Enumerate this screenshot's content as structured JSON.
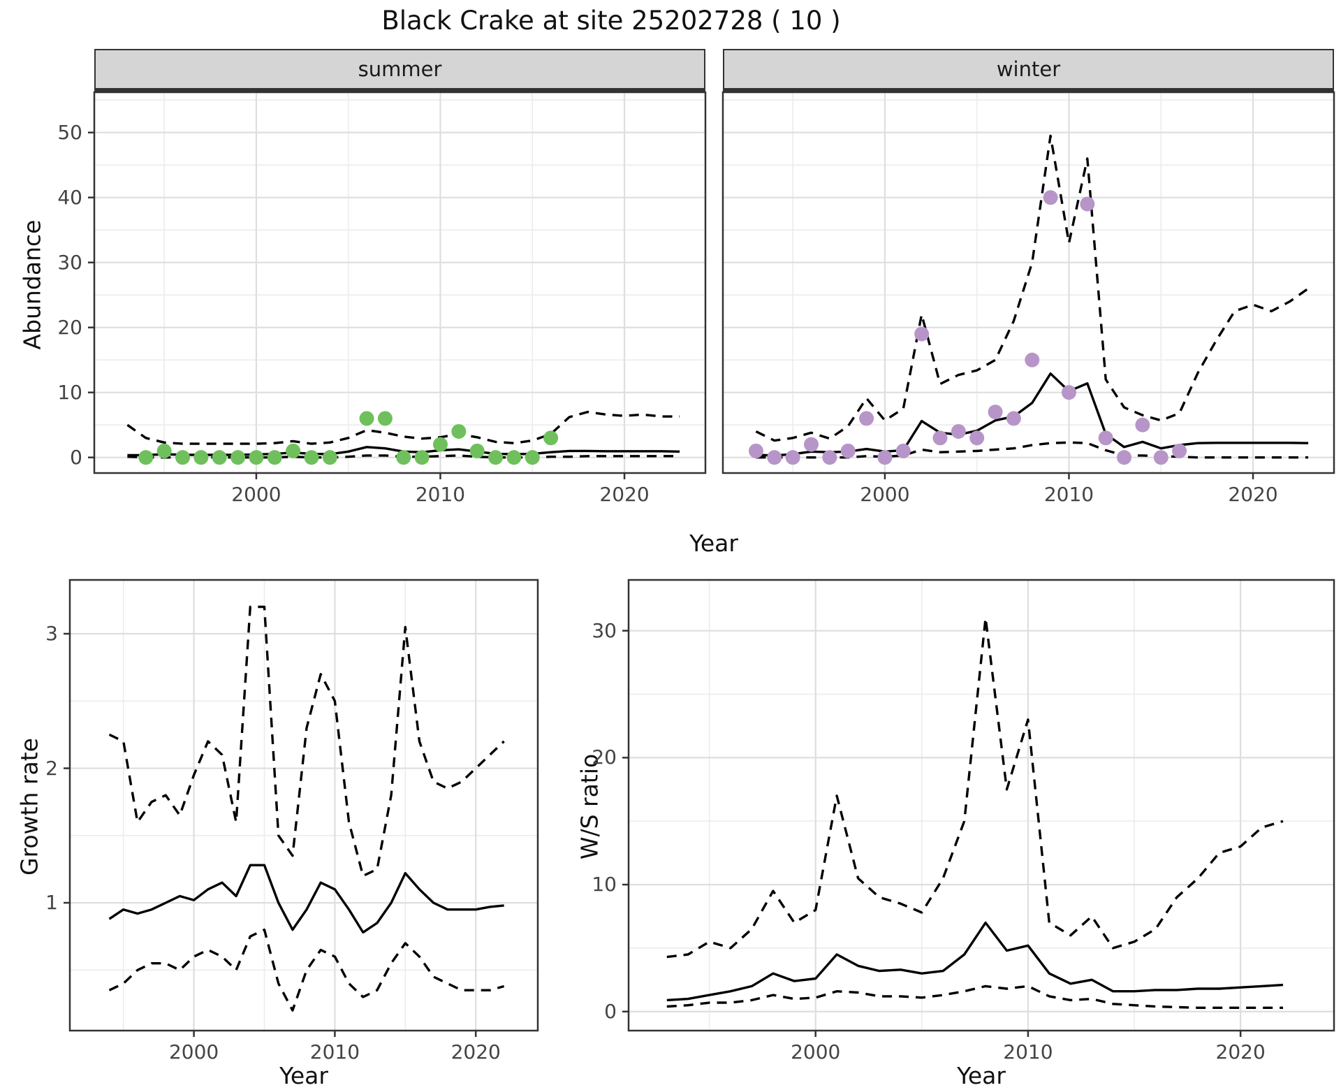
{
  "title": "Black Crake at site 25202728 ( 10 )",
  "axes": {
    "abundance_label": "Abundance",
    "top_x_label": "Year",
    "growth_y_label": "Growth rate",
    "growth_x_label": "Year",
    "ws_y_label": "W/S ratio",
    "ws_x_label": "Year"
  },
  "facets": {
    "summer_label": "summer",
    "winter_label": "winter"
  },
  "colors": {
    "summer_points": "#6FC05C",
    "winter_points": "#B795C8",
    "line": "#000000",
    "strip_bg": "#d5d5d5",
    "grid_major": "#dedede",
    "grid_minor": "#ececec",
    "panel_border": "#333333"
  },
  "chart_data": [
    {
      "id": "summer",
      "type": "line",
      "title": "summer",
      "xlabel": "Year",
      "ylabel": "Abundance",
      "xlim": [
        1991.2,
        2024.4
      ],
      "ylim": [
        -2.4,
        56.2
      ],
      "x_ticks": [
        2000,
        2010,
        2020
      ],
      "y_ticks": [
        0,
        10,
        20,
        30,
        40,
        50
      ],
      "x": [
        1993,
        1994,
        1995,
        1996,
        1997,
        1998,
        1999,
        2000,
        2001,
        2002,
        2003,
        2004,
        2005,
        2006,
        2007,
        2008,
        2009,
        2010,
        2011,
        2012,
        2013,
        2014,
        2015,
        2016,
        2017,
        2018,
        2019,
        2020,
        2021,
        2022,
        2023
      ],
      "series": [
        {
          "name": "mean",
          "style": "solid",
          "values": [
            0.35,
            0.35,
            0.5,
            0.4,
            0.4,
            0.4,
            0.4,
            0.45,
            0.55,
            0.75,
            0.55,
            0.5,
            0.9,
            1.6,
            1.4,
            0.9,
            0.8,
            1.1,
            1.25,
            0.9,
            0.55,
            0.5,
            0.55,
            0.8,
            1.0,
            1.0,
            0.95,
            0.95,
            0.95,
            0.95,
            0.9
          ]
        },
        {
          "name": "upper_ci",
          "style": "dashed",
          "values": [
            5.0,
            3.0,
            2.3,
            2.1,
            2.1,
            2.1,
            2.1,
            2.1,
            2.2,
            2.5,
            2.1,
            2.3,
            3.0,
            4.2,
            3.8,
            3.2,
            2.9,
            3.1,
            3.6,
            3.1,
            2.4,
            2.2,
            2.6,
            3.6,
            6.2,
            7.0,
            6.6,
            6.4,
            6.6,
            6.3,
            6.3
          ]
        },
        {
          "name": "lower_ci",
          "style": "dashed",
          "values": [
            0.1,
            0,
            0,
            0,
            0,
            0,
            0,
            0,
            0,
            0.1,
            0,
            0,
            0.1,
            0.3,
            0.3,
            0.1,
            0.1,
            0.2,
            0.3,
            0.1,
            0,
            0,
            0,
            0.1,
            0.1,
            0.2,
            0.2,
            0.2,
            0.2,
            0.2,
            0.2
          ]
        }
      ],
      "points": {
        "color_key": "summer_points",
        "years": [
          1994,
          1995,
          1996,
          1997,
          1998,
          1999,
          2000,
          2001,
          2002,
          2003,
          2004,
          2006,
          2007,
          2008,
          2009,
          2010,
          2011,
          2012,
          2013,
          2014,
          2015,
          2016
        ],
        "values": [
          0,
          1,
          0,
          0,
          0,
          0,
          0,
          0,
          1,
          0,
          0,
          6,
          6,
          0,
          0,
          2,
          4,
          1,
          0,
          0,
          0,
          3
        ]
      }
    },
    {
      "id": "winter",
      "type": "line",
      "title": "winter",
      "xlabel": "Year",
      "ylabel": "Abundance",
      "xlim": [
        1991.2,
        2024.4
      ],
      "ylim": [
        -2.4,
        56.2
      ],
      "x_ticks": [
        2000,
        2010,
        2020
      ],
      "y_ticks": [
        0,
        10,
        20,
        30,
        40,
        50
      ],
      "x": [
        1993,
        1994,
        1995,
        1996,
        1997,
        1998,
        1999,
        2000,
        2001,
        2002,
        2003,
        2004,
        2005,
        2006,
        2007,
        2008,
        2009,
        2010,
        2011,
        2012,
        2013,
        2014,
        2015,
        2016,
        2017,
        2018,
        2019,
        2020,
        2021,
        2022,
        2023
      ],
      "series": [
        {
          "name": "mean",
          "style": "solid",
          "values": [
            0.4,
            0.3,
            0.5,
            0.9,
            0.8,
            0.9,
            1.3,
            0.9,
            1.1,
            5.6,
            3.8,
            3.5,
            4.1,
            5.7,
            6.3,
            8.4,
            12.9,
            10.2,
            11.4,
            3.6,
            1.6,
            2.4,
            1.4,
            1.9,
            2.2,
            2.25,
            2.25,
            2.25,
            2.25,
            2.25,
            2.2
          ]
        },
        {
          "name": "upper_ci",
          "style": "dashed",
          "values": [
            4.0,
            2.6,
            3.0,
            3.8,
            2.9,
            4.8,
            9.1,
            5.7,
            7.5,
            22,
            11.3,
            12.7,
            13.4,
            15,
            21,
            30,
            49.5,
            33,
            46,
            12,
            7.7,
            6.5,
            5.7,
            6.8,
            13,
            18,
            22.5,
            23.5,
            22.5,
            24,
            26
          ]
        },
        {
          "name": "lower_ci",
          "style": "dashed",
          "values": [
            0,
            0,
            0,
            0,
            0,
            0,
            0.2,
            0.1,
            0.3,
            1.2,
            0.8,
            0.9,
            1.0,
            1.2,
            1.4,
            1.9,
            2.2,
            2.3,
            2.2,
            1.1,
            0.3,
            0.3,
            0.2,
            0.1,
            0,
            0,
            0,
            0,
            0,
            0,
            0
          ]
        }
      ],
      "points": {
        "color_key": "winter_points",
        "years": [
          1993,
          1994,
          1995,
          1996,
          1997,
          1998,
          1999,
          2000,
          2001,
          2002,
          2003,
          2004,
          2005,
          2006,
          2007,
          2008,
          2009,
          2010,
          2011,
          2012,
          2013,
          2014,
          2015,
          2016
        ],
        "values": [
          1,
          0,
          0,
          2,
          0,
          1,
          6,
          0,
          1,
          19,
          3,
          4,
          3,
          7,
          6,
          15,
          40,
          10,
          39,
          3,
          0,
          5,
          0,
          1
        ]
      }
    },
    {
      "id": "growth",
      "type": "line",
      "title": "Growth rate",
      "xlabel": "Year",
      "ylabel": "Growth rate",
      "xlim": [
        1991.2,
        2024.4
      ],
      "ylim": [
        0.05,
        3.4
      ],
      "x_ticks": [
        2000,
        2010,
        2020
      ],
      "y_ticks": [
        1,
        2,
        3
      ],
      "x": [
        1994,
        1995,
        1996,
        1997,
        1998,
        1999,
        2000,
        2001,
        2002,
        2003,
        2004,
        2005,
        2006,
        2007,
        2008,
        2009,
        2010,
        2011,
        2012,
        2013,
        2014,
        2015,
        2016,
        2017,
        2018,
        2019,
        2020,
        2021,
        2022
      ],
      "series": [
        {
          "name": "mean",
          "style": "solid",
          "values": [
            0.88,
            0.95,
            0.92,
            0.95,
            1.0,
            1.05,
            1.02,
            1.1,
            1.15,
            1.05,
            1.28,
            1.28,
            1.0,
            0.8,
            0.95,
            1.15,
            1.1,
            0.95,
            0.78,
            0.85,
            1.0,
            1.22,
            1.1,
            1.0,
            0.95,
            0.95,
            0.95,
            0.97,
            0.98
          ]
        },
        {
          "name": "upper_ci",
          "style": "dashed",
          "values": [
            2.25,
            2.2,
            1.6,
            1.75,
            1.8,
            1.65,
            1.95,
            2.2,
            2.1,
            1.6,
            3.2,
            3.2,
            1.5,
            1.35,
            2.3,
            2.7,
            2.5,
            1.6,
            1.2,
            1.25,
            1.8,
            3.05,
            2.2,
            1.9,
            1.85,
            1.9,
            2.0,
            2.1,
            2.2
          ]
        },
        {
          "name": "lower_ci",
          "style": "dashed",
          "values": [
            0.35,
            0.4,
            0.5,
            0.55,
            0.55,
            0.5,
            0.6,
            0.65,
            0.6,
            0.5,
            0.75,
            0.8,
            0.4,
            0.2,
            0.5,
            0.65,
            0.6,
            0.4,
            0.3,
            0.35,
            0.55,
            0.7,
            0.6,
            0.45,
            0.4,
            0.35,
            0.35,
            0.35,
            0.38
          ]
        }
      ],
      "points": null
    },
    {
      "id": "ws",
      "type": "line",
      "title": "W/S ratio",
      "xlabel": "Year",
      "ylabel": "W/S ratio",
      "xlim": [
        1991.2,
        2024.4
      ],
      "ylim": [
        -1.5,
        34
      ],
      "x_ticks": [
        2000,
        2010,
        2020
      ],
      "y_ticks": [
        0,
        10,
        20,
        30
      ],
      "x": [
        1993,
        1994,
        1995,
        1996,
        1997,
        1998,
        1999,
        2000,
        2001,
        2002,
        2003,
        2004,
        2005,
        2006,
        2007,
        2008,
        2009,
        2010,
        2011,
        2012,
        2013,
        2014,
        2015,
        2016,
        2017,
        2018,
        2019,
        2020,
        2021,
        2022
      ],
      "series": [
        {
          "name": "mean",
          "style": "solid",
          "values": [
            0.9,
            1.0,
            1.3,
            1.6,
            2.0,
            3.0,
            2.4,
            2.6,
            4.5,
            3.6,
            3.2,
            3.3,
            3.0,
            3.2,
            4.5,
            7.0,
            4.8,
            5.2,
            3.0,
            2.2,
            2.5,
            1.6,
            1.6,
            1.7,
            1.7,
            1.8,
            1.8,
            1.9,
            2.0,
            2.1
          ]
        },
        {
          "name": "upper_ci",
          "style": "dashed",
          "values": [
            4.3,
            4.5,
            5.5,
            5.0,
            6.5,
            9.5,
            7.0,
            8.0,
            17.0,
            10.5,
            9.0,
            8.5,
            7.8,
            10.5,
            15.0,
            31.0,
            17.5,
            23.0,
            7.0,
            6.0,
            7.5,
            5.0,
            5.5,
            6.5,
            9.0,
            10.5,
            12.5,
            13.0,
            14.5,
            15.0
          ]
        },
        {
          "name": "lower_ci",
          "style": "dashed",
          "values": [
            0.4,
            0.5,
            0.7,
            0.7,
            0.9,
            1.3,
            1.0,
            1.1,
            1.6,
            1.5,
            1.2,
            1.2,
            1.1,
            1.3,
            1.6,
            2.0,
            1.8,
            2.0,
            1.2,
            0.9,
            1.0,
            0.6,
            0.5,
            0.4,
            0.35,
            0.3,
            0.3,
            0.3,
            0.3,
            0.3
          ]
        }
      ],
      "points": null
    }
  ]
}
